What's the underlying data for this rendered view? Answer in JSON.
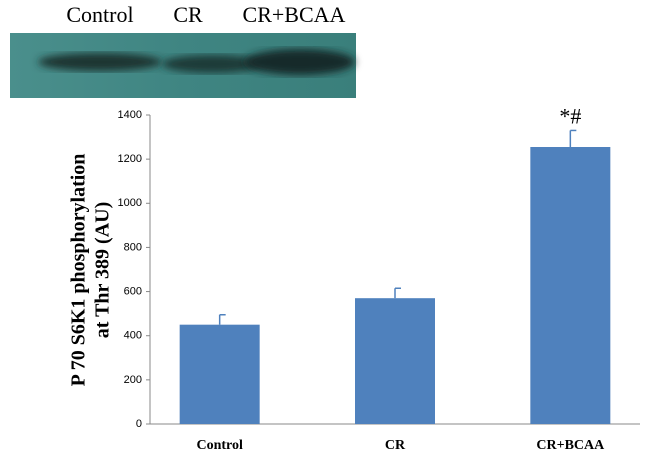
{
  "chart_data": {
    "type": "bar",
    "blot_labels": [
      "Control",
      "CR",
      "CR+BCAA"
    ],
    "ylabel": [
      "P 70 S6K1 phosphorylation",
      "at Thr 389 (AU)"
    ],
    "categories": [
      "Control",
      "CR",
      "CR+BCAA"
    ],
    "values": [
      450,
      570,
      1255
    ],
    "errors": [
      45,
      45,
      75
    ],
    "annotation": "*#",
    "color": "#4f81bd",
    "ylim": [
      0,
      1400
    ],
    "yticks": [
      0,
      200,
      400,
      600,
      800,
      1000,
      1200,
      1400
    ]
  }
}
